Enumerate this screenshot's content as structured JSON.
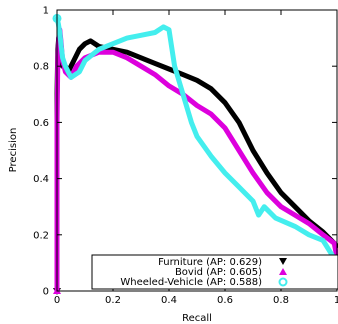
{
  "chart_data": {
    "type": "line",
    "title": "",
    "xlabel": "Recall",
    "ylabel": "Precision",
    "xlim": [
      0,
      1
    ],
    "ylim": [
      0,
      1
    ],
    "x_ticks": [
      "0",
      "0.2",
      "0.4",
      "0.6",
      "0.8",
      "1"
    ],
    "y_ticks": [
      "0",
      "0.2",
      "0.4",
      "0.6",
      "0.8",
      "1"
    ],
    "grid": false,
    "legend_position": "bottom-right",
    "series": [
      {
        "name": "Furniture (AP: 0.629)",
        "color": "#000000",
        "marker": "triangle-down",
        "points": [
          [
            0,
            0
          ],
          [
            0,
            0.7
          ],
          [
            0.003,
            0.86
          ],
          [
            0.006,
            0.9
          ],
          [
            0.01,
            0.88
          ],
          [
            0.015,
            0.84
          ],
          [
            0.02,
            0.8
          ],
          [
            0.03,
            0.8
          ],
          [
            0.04,
            0.78
          ],
          [
            0.06,
            0.82
          ],
          [
            0.08,
            0.86
          ],
          [
            0.1,
            0.88
          ],
          [
            0.12,
            0.89
          ],
          [
            0.15,
            0.87
          ],
          [
            0.2,
            0.86
          ],
          [
            0.25,
            0.85
          ],
          [
            0.3,
            0.83
          ],
          [
            0.35,
            0.81
          ],
          [
            0.4,
            0.79
          ],
          [
            0.45,
            0.77
          ],
          [
            0.5,
            0.75
          ],
          [
            0.55,
            0.72
          ],
          [
            0.6,
            0.67
          ],
          [
            0.65,
            0.6
          ],
          [
            0.7,
            0.5
          ],
          [
            0.75,
            0.42
          ],
          [
            0.8,
            0.35
          ],
          [
            0.85,
            0.3
          ],
          [
            0.9,
            0.25
          ],
          [
            0.95,
            0.21
          ],
          [
            1.0,
            0.16
          ]
        ]
      },
      {
        "name": "Bovid (AP: 0.605)",
        "color": "#dd00dd",
        "marker": "triangle-up",
        "points": [
          [
            0,
            0
          ],
          [
            0,
            0.6
          ],
          [
            0.003,
            0.82
          ],
          [
            0.006,
            0.9
          ],
          [
            0.01,
            0.93
          ],
          [
            0.015,
            0.88
          ],
          [
            0.02,
            0.82
          ],
          [
            0.03,
            0.78
          ],
          [
            0.05,
            0.76
          ],
          [
            0.07,
            0.8
          ],
          [
            0.1,
            0.83
          ],
          [
            0.15,
            0.85
          ],
          [
            0.2,
            0.85
          ],
          [
            0.25,
            0.83
          ],
          [
            0.3,
            0.8
          ],
          [
            0.35,
            0.77
          ],
          [
            0.4,
            0.73
          ],
          [
            0.45,
            0.7
          ],
          [
            0.5,
            0.66
          ],
          [
            0.55,
            0.63
          ],
          [
            0.6,
            0.58
          ],
          [
            0.65,
            0.5
          ],
          [
            0.7,
            0.42
          ],
          [
            0.75,
            0.35
          ],
          [
            0.8,
            0.3
          ],
          [
            0.85,
            0.27
          ],
          [
            0.9,
            0.24
          ],
          [
            0.95,
            0.2
          ],
          [
            0.99,
            0.17
          ],
          [
            1.0,
            0.12
          ]
        ]
      },
      {
        "name": "Wheeled-Vehicle (AP: 0.588)",
        "color": "#44eeee",
        "marker": "circle",
        "points": [
          [
            0,
            0.97
          ],
          [
            0.005,
            0.95
          ],
          [
            0.01,
            0.92
          ],
          [
            0.015,
            0.87
          ],
          [
            0.02,
            0.83
          ],
          [
            0.03,
            0.8
          ],
          [
            0.05,
            0.76
          ],
          [
            0.08,
            0.78
          ],
          [
            0.1,
            0.82
          ],
          [
            0.15,
            0.86
          ],
          [
            0.2,
            0.88
          ],
          [
            0.25,
            0.9
          ],
          [
            0.3,
            0.91
          ],
          [
            0.35,
            0.92
          ],
          [
            0.38,
            0.94
          ],
          [
            0.4,
            0.93
          ],
          [
            0.42,
            0.8
          ],
          [
            0.45,
            0.7
          ],
          [
            0.48,
            0.6
          ],
          [
            0.5,
            0.55
          ],
          [
            0.55,
            0.48
          ],
          [
            0.6,
            0.42
          ],
          [
            0.65,
            0.37
          ],
          [
            0.7,
            0.32
          ],
          [
            0.72,
            0.27
          ],
          [
            0.74,
            0.3
          ],
          [
            0.78,
            0.26
          ],
          [
            0.85,
            0.23
          ],
          [
            0.9,
            0.2
          ],
          [
            0.95,
            0.18
          ],
          [
            1.0,
            0.1
          ]
        ]
      }
    ]
  }
}
